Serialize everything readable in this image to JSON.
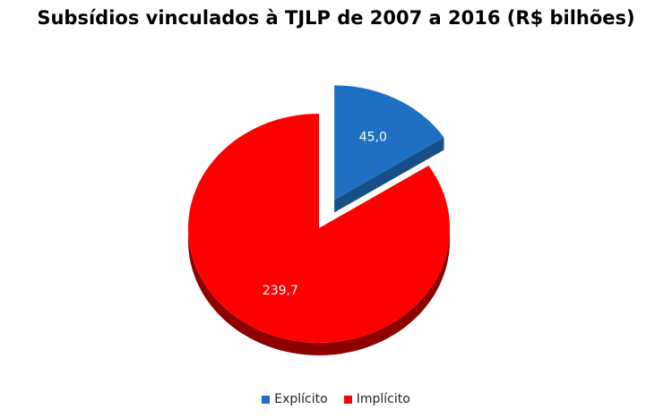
{
  "chart_data": {
    "type": "pie",
    "title": "Subsídios vinculados à TJLP de 2007 a 2016 (R$ bilhões)",
    "categories": [
      "Explícito",
      "Implícito"
    ],
    "values": [
      45.0,
      239.7
    ],
    "data_labels": [
      "45,0",
      "239,7"
    ],
    "colors": [
      "#1f6fc2",
      "#ff0000"
    ],
    "exploded": [
      "Explícito"
    ],
    "legend_placement": "bottom",
    "style": "3d"
  }
}
